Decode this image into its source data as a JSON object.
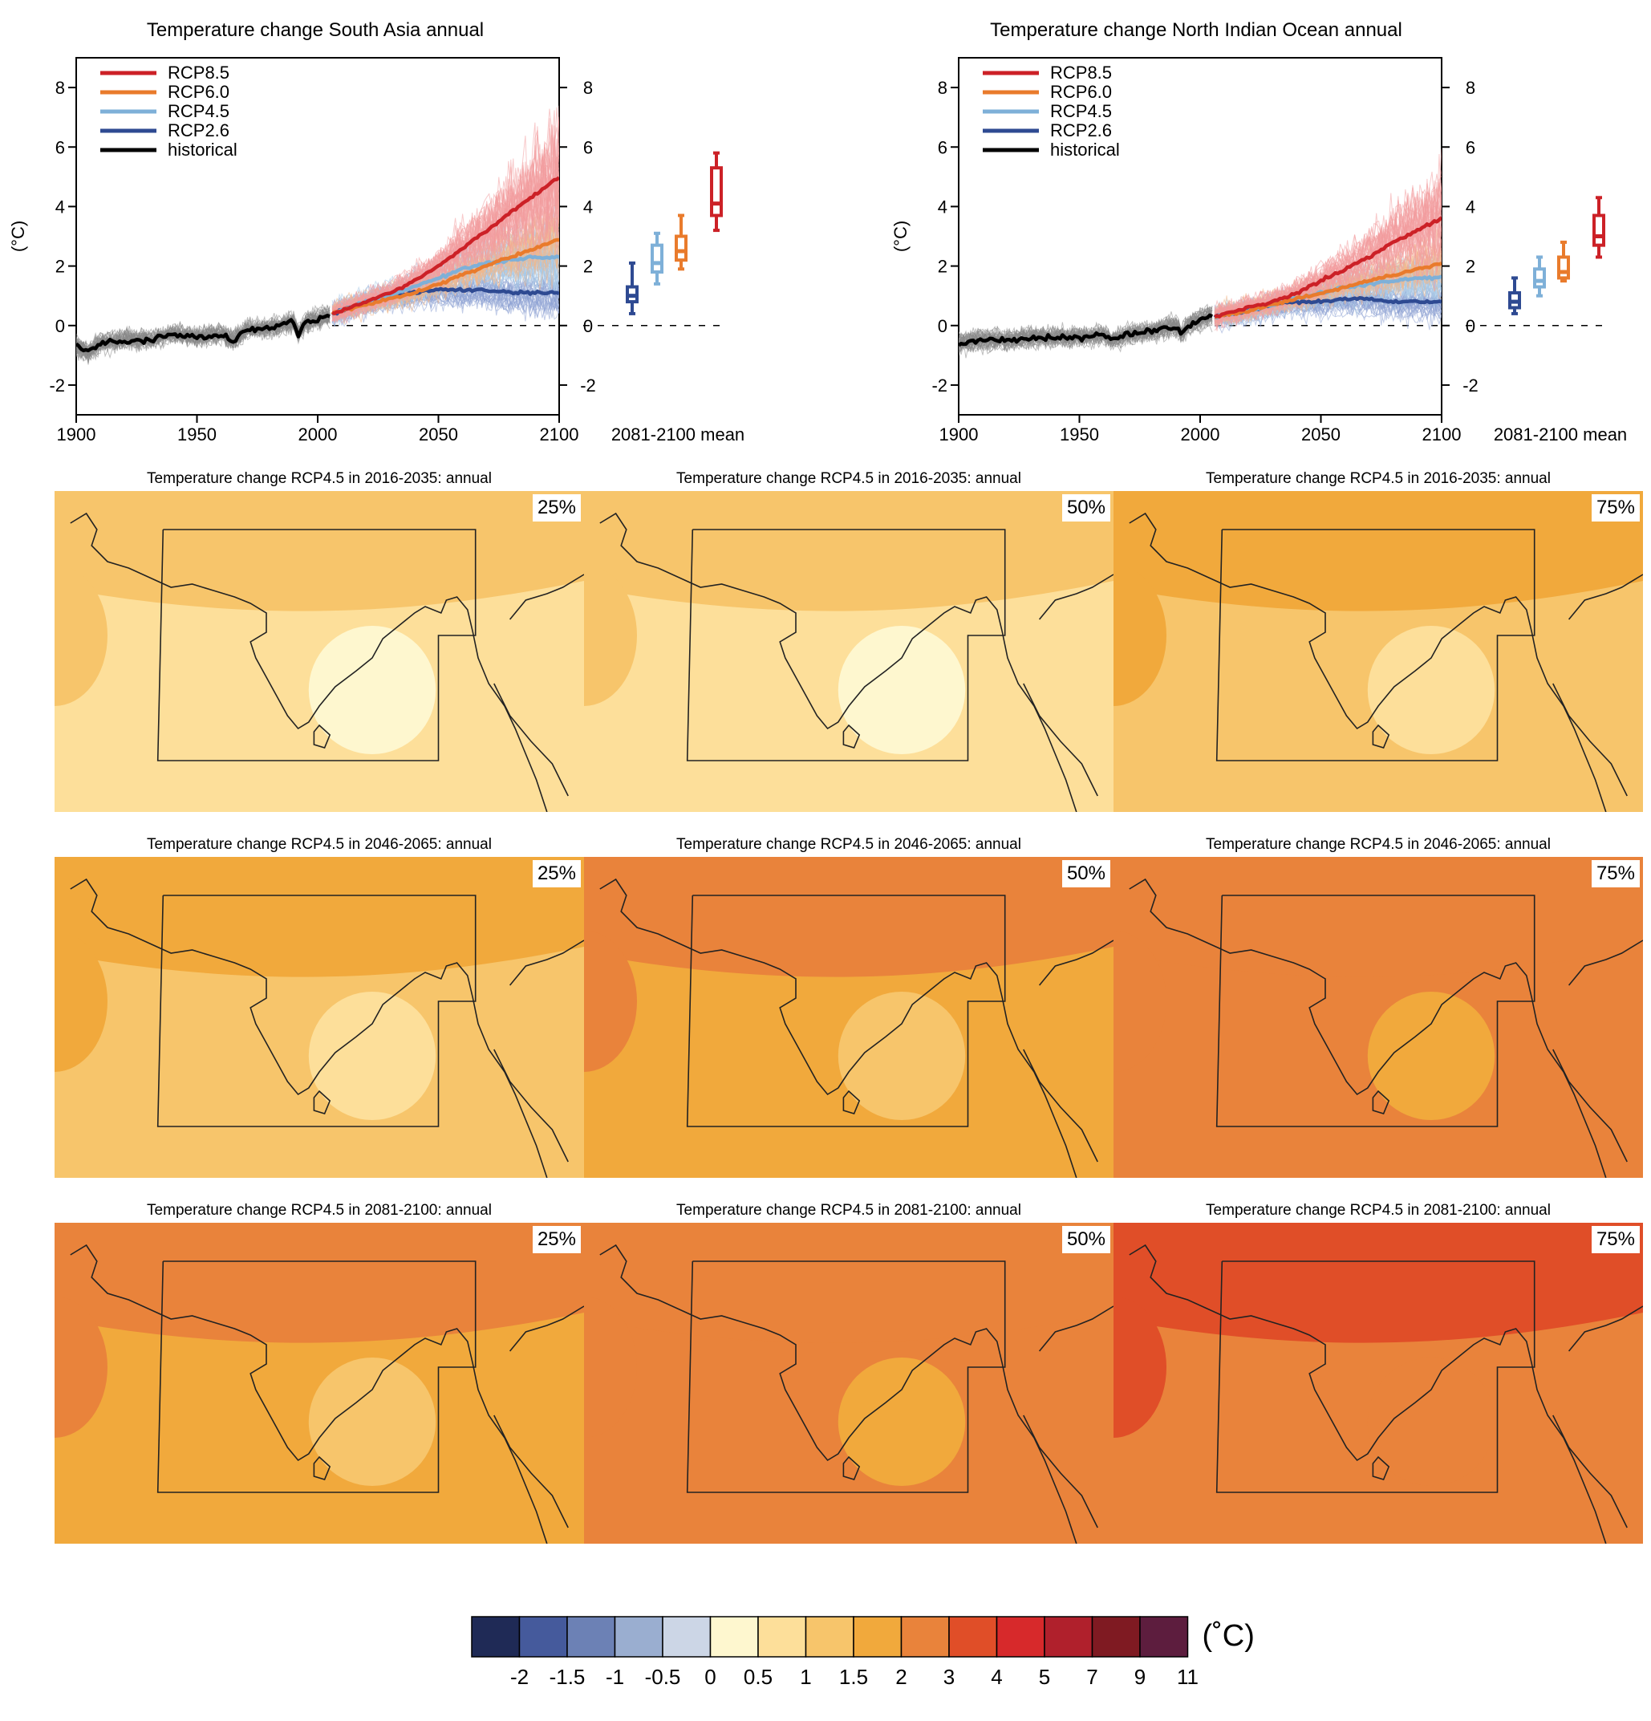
{
  "timeseries": [
    {
      "title": "Temperature change South Asia annual",
      "ylabel": "(°C)",
      "boxplot_label": "2081-2100 mean"
    },
    {
      "title": "Temperature change North Indian Ocean annual",
      "ylabel": "(°C)",
      "boxplot_label": "2081-2100 mean"
    }
  ],
  "chart_data": [
    {
      "type": "line",
      "title": "Temperature change South Asia annual",
      "xlabel": "",
      "ylabel": "(°C)",
      "xlim": [
        1900,
        2100
      ],
      "ylim": [
        -3,
        9
      ],
      "x_ticks": [
        1900,
        1950,
        2000,
        2050,
        2100
      ],
      "y_ticks": [
        -2,
        0,
        2,
        4,
        6,
        8
      ],
      "legend_position": "top-left",
      "series": [
        {
          "name": "RCP8.5",
          "color": "#cc2127",
          "x": [
            2006,
            2020,
            2030,
            2040,
            2050,
            2060,
            2070,
            2080,
            2090,
            2100
          ],
          "values": [
            0.4,
            0.8,
            1.1,
            1.5,
            2.0,
            2.6,
            3.2,
            3.8,
            4.4,
            5.0
          ]
        },
        {
          "name": "RCP6.0",
          "color": "#e97b2c",
          "x": [
            2006,
            2020,
            2030,
            2040,
            2050,
            2060,
            2070,
            2080,
            2090,
            2100
          ],
          "values": [
            0.4,
            0.7,
            0.9,
            1.1,
            1.4,
            1.7,
            2.0,
            2.3,
            2.6,
            2.9
          ]
        },
        {
          "name": "RCP4.5",
          "color": "#7eb0d8",
          "x": [
            2006,
            2020,
            2030,
            2040,
            2050,
            2060,
            2070,
            2080,
            2090,
            2100
          ],
          "values": [
            0.4,
            0.8,
            1.0,
            1.3,
            1.6,
            1.9,
            2.1,
            2.2,
            2.3,
            2.3
          ]
        },
        {
          "name": "RCP2.6",
          "color": "#2e4a92",
          "x": [
            2006,
            2020,
            2030,
            2040,
            2050,
            2060,
            2070,
            2080,
            2090,
            2100
          ],
          "values": [
            0.4,
            0.8,
            1.0,
            1.1,
            1.2,
            1.2,
            1.2,
            1.1,
            1.1,
            1.1
          ]
        },
        {
          "name": "historical",
          "color": "#000000",
          "x": [
            1900,
            1905,
            1910,
            1920,
            1930,
            1940,
            1950,
            1960,
            1965,
            1970,
            1980,
            1990,
            1992,
            1995,
            2000,
            2005
          ],
          "values": [
            -0.7,
            -0.9,
            -0.6,
            -0.5,
            -0.5,
            -0.3,
            -0.4,
            -0.3,
            -0.5,
            -0.2,
            -0.1,
            0.1,
            -0.3,
            0.1,
            0.2,
            0.3
          ]
        }
      ],
      "boxplots_2081_2100": [
        {
          "series": "RCP2.6",
          "min": 0.4,
          "q1": 0.8,
          "median": 1.0,
          "q3": 1.3,
          "max": 2.1
        },
        {
          "series": "RCP4.5",
          "min": 1.4,
          "q1": 1.8,
          "median": 2.1,
          "q3": 2.7,
          "max": 3.1
        },
        {
          "series": "RCP6.0",
          "min": 1.9,
          "q1": 2.2,
          "median": 2.5,
          "q3": 3.0,
          "max": 3.7
        },
        {
          "series": "RCP8.5",
          "min": 3.2,
          "q1": 3.7,
          "median": 4.1,
          "q3": 5.3,
          "max": 5.8
        }
      ]
    },
    {
      "type": "line",
      "title": "Temperature change North Indian Ocean annual",
      "xlabel": "",
      "ylabel": "(°C)",
      "xlim": [
        1900,
        2100
      ],
      "ylim": [
        -3,
        9
      ],
      "x_ticks": [
        1900,
        1950,
        2000,
        2050,
        2100
      ],
      "y_ticks": [
        -2,
        0,
        2,
        4,
        6,
        8
      ],
      "legend_position": "top-left",
      "series": [
        {
          "name": "RCP8.5",
          "color": "#cc2127",
          "x": [
            2006,
            2020,
            2030,
            2040,
            2050,
            2060,
            2070,
            2080,
            2090,
            2100
          ],
          "values": [
            0.3,
            0.6,
            0.8,
            1.1,
            1.5,
            1.9,
            2.3,
            2.8,
            3.2,
            3.6
          ]
        },
        {
          "name": "RCP6.0",
          "color": "#e97b2c",
          "x": [
            2006,
            2020,
            2030,
            2040,
            2050,
            2060,
            2070,
            2080,
            2090,
            2100
          ],
          "values": [
            0.3,
            0.5,
            0.7,
            0.9,
            1.1,
            1.3,
            1.5,
            1.7,
            1.9,
            2.1
          ]
        },
        {
          "name": "RCP4.5",
          "color": "#7eb0d8",
          "x": [
            2006,
            2020,
            2030,
            2040,
            2050,
            2060,
            2070,
            2080,
            2090,
            2100
          ],
          "values": [
            0.3,
            0.5,
            0.7,
            0.9,
            1.1,
            1.3,
            1.4,
            1.5,
            1.6,
            1.6
          ]
        },
        {
          "name": "RCP2.6",
          "color": "#2e4a92",
          "x": [
            2006,
            2020,
            2030,
            2040,
            2050,
            2060,
            2070,
            2080,
            2090,
            2100
          ],
          "values": [
            0.3,
            0.5,
            0.7,
            0.8,
            0.8,
            0.9,
            0.9,
            0.8,
            0.8,
            0.8
          ]
        },
        {
          "name": "historical",
          "color": "#000000",
          "x": [
            1900,
            1910,
            1920,
            1930,
            1940,
            1950,
            1960,
            1963,
            1970,
            1980,
            1990,
            1992,
            1995,
            2000,
            2005
          ],
          "values": [
            -0.6,
            -0.5,
            -0.5,
            -0.4,
            -0.4,
            -0.4,
            -0.3,
            -0.5,
            -0.3,
            -0.2,
            0.0,
            -0.3,
            0.0,
            0.2,
            0.3
          ]
        }
      ],
      "boxplots_2081_2100": [
        {
          "series": "RCP2.6",
          "min": 0.4,
          "q1": 0.6,
          "median": 0.8,
          "q3": 1.1,
          "max": 1.6
        },
        {
          "series": "RCP4.5",
          "min": 1.0,
          "q1": 1.3,
          "median": 1.5,
          "q3": 1.9,
          "max": 2.3
        },
        {
          "series": "RCP6.0",
          "min": 1.5,
          "q1": 1.6,
          "median": 1.8,
          "q3": 2.3,
          "max": 2.8
        },
        {
          "series": "RCP8.5",
          "min": 2.3,
          "q1": 2.7,
          "median": 3.0,
          "q3": 3.7,
          "max": 4.3
        }
      ]
    },
    {
      "type": "heatmap",
      "maps": [
        {
          "title": "Temperature change RCP4.5 in 2016-2035: annual",
          "percentile": "25%",
          "level": 0.5
        },
        {
          "title": "Temperature change RCP4.5 in 2016-2035: annual",
          "percentile": "50%",
          "level": 0.8
        },
        {
          "title": "Temperature change RCP4.5 in 2016-2035: annual",
          "percentile": "75%",
          "level": 1.0
        },
        {
          "title": "Temperature change RCP4.5 in 2046-2065: annual",
          "percentile": "25%",
          "level": 1.2
        },
        {
          "title": "Temperature change RCP4.5 in 2046-2065: annual",
          "percentile": "50%",
          "level": 1.6
        },
        {
          "title": "Temperature change RCP4.5 in 2046-2065: annual",
          "percentile": "75%",
          "level": 2.0
        },
        {
          "title": "Temperature change RCP4.5 in 2081-2100: annual",
          "percentile": "25%",
          "level": 1.6
        },
        {
          "title": "Temperature change RCP4.5 in 2081-2100: annual",
          "percentile": "50%",
          "level": 2.0
        },
        {
          "title": "Temperature change RCP4.5 in 2081-2100: annual",
          "percentile": "75%",
          "level": 2.8
        }
      ],
      "colorbar": {
        "unit": "(˚C)",
        "tick_labels": [
          "-2",
          "-1.5",
          "-1",
          "-0.5",
          "0",
          "0.5",
          "1",
          "1.5",
          "2",
          "3",
          "4",
          "5",
          "7",
          "9",
          "11"
        ],
        "colors": [
          "#1f2a56",
          "#455a9c",
          "#6c81b5",
          "#9aaed0",
          "#ccd6e6",
          "#fef7cf",
          "#fddf9a",
          "#f7c56b",
          "#f1a93c",
          "#e9833b",
          "#e04e28",
          "#d7292b",
          "#b0202c",
          "#7f1a22",
          "#5d1d3e"
        ]
      }
    }
  ]
}
